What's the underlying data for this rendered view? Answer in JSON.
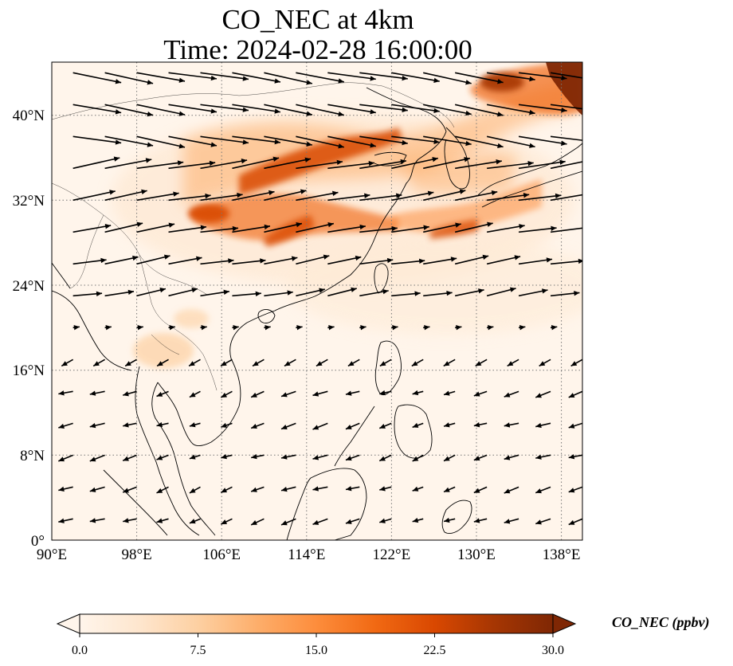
{
  "title_line1": "CO_NEC at 4km",
  "title_line2": "Time: 2024-02-28 16:00:00",
  "colorbar": {
    "label": "CO_NEC (ppbv)",
    "ticks": [
      "0.0",
      "7.5",
      "15.0",
      "22.5",
      "30.0"
    ],
    "tick_values": [
      0,
      7.5,
      15,
      22.5,
      30
    ],
    "range": [
      0,
      30
    ],
    "extend": "both",
    "colors": [
      "#fff5eb",
      "#fee6ce",
      "#fdd0a2",
      "#fdae6b",
      "#fd8d3c",
      "#f16913",
      "#d94801",
      "#a63603",
      "#7f2704"
    ]
  },
  "map": {
    "lon_labels": [
      "90°E",
      "98°E",
      "106°E",
      "114°E",
      "122°E",
      "130°E",
      "138°E"
    ],
    "lat_labels": [
      "0°",
      "8°N",
      "16°N",
      "24°N",
      "32°N",
      "40°N"
    ],
    "lon_range": [
      90,
      140
    ],
    "lat_range": [
      0,
      45
    ],
    "gridlines": "dotted",
    "projection": "PlateCarree"
  },
  "plumes": [
    {
      "name": "northern-china-band",
      "lon": 112,
      "lat": 36.5,
      "value": 16
    },
    {
      "name": "central-china-band",
      "lon": 112.5,
      "lat": 30.5,
      "value": 12
    },
    {
      "name": "sichuan-plume",
      "lon": 104.5,
      "lat": 31,
      "value": 18
    },
    {
      "name": "east-china-sea-plume",
      "lon": 126,
      "lat": 29.5,
      "value": 14
    },
    {
      "name": "korea-plume",
      "lon": 128,
      "lat": 35.5,
      "value": 11
    },
    {
      "name": "japan-sea-plume",
      "lon": 132,
      "lat": 39,
      "value": 15
    },
    {
      "name": "northeast-hotspot",
      "lon": 134,
      "lat": 43,
      "value": 28
    },
    {
      "name": "hokkaido-edge-hotspot",
      "lon": 139,
      "lat": 43,
      "value": 30
    },
    {
      "name": "indochina-plume",
      "lon": 100.5,
      "lat": 17.5,
      "value": 6
    }
  ],
  "wind": {
    "grid_step_deg": 3,
    "lon_start": 92,
    "lat_start": 2,
    "description": "westerlies north of 20N, northeasterlies to the south"
  }
}
